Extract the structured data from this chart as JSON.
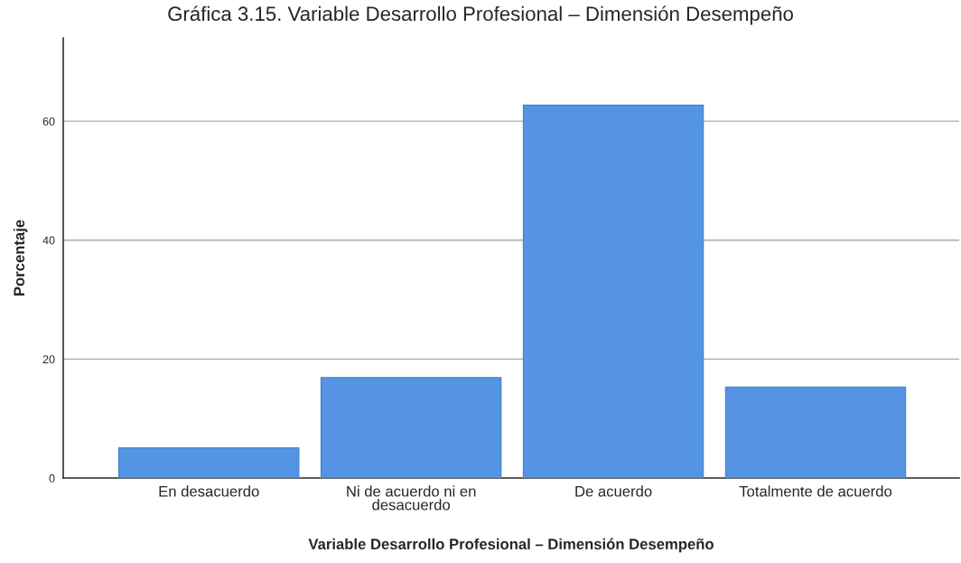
{
  "chart_data": {
    "type": "bar",
    "title": "Gráfica 3.15. Variable Desarrollo Profesional – Dimensión Desempeño",
    "xlabel": "Variable Desarrollo Profesional – Dimensión Desempeño",
    "ylabel": "Porcentaje",
    "categories": [
      "En desacuerdo",
      "Ni de acuerdo ni en\ndesacuerdo",
      "De acuerdo",
      "Totalmente de acuerdo"
    ],
    "values": [
      5.1,
      16.9,
      62.7,
      15.3
    ],
    "color": "#5594e2",
    "ylim": [
      0,
      74
    ],
    "yticks": [
      0,
      20,
      40,
      60
    ],
    "grid": "y",
    "legend": false
  }
}
